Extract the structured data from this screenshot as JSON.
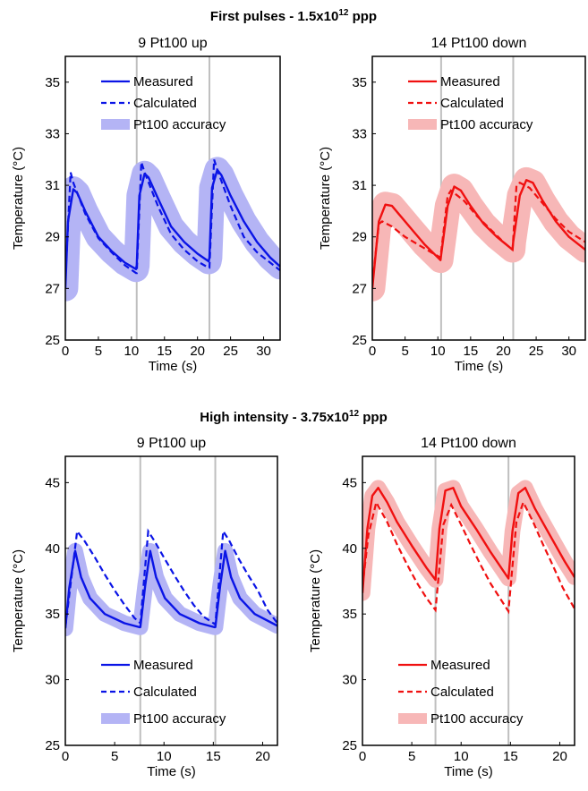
{
  "sections": [
    {
      "title": "First  pulses  -  1.5x10",
      "sup": "12",
      "tail": " ppp"
    },
    {
      "title": "High  intensity  -  3.75x10",
      "sup": "12",
      "tail": " ppp"
    }
  ],
  "colors": {
    "blue": "#0a14e6",
    "blue_band": "#b4b4f5",
    "red": "#f01010",
    "red_band": "#f7b7b7",
    "pulse_line": "#bfbfbf"
  },
  "chart_data": [
    {
      "type": "line",
      "title": "9  Pt100  up",
      "xlabel": "Time  (s)",
      "ylabel": "Temperature  (°C)",
      "xlim": [
        0,
        32.5
      ],
      "ylim": [
        25,
        36
      ],
      "xticks": [
        0,
        5,
        10,
        15,
        20,
        25,
        30
      ],
      "yticks": [
        25,
        27,
        29,
        31,
        33,
        35
      ],
      "pulse_times": [
        10.8,
        21.8
      ],
      "color": "blue",
      "legend": {
        "position": "top-left",
        "entries": [
          {
            "label": "Measured",
            "style": "solid"
          },
          {
            "label": "Calculated",
            "style": "dashed"
          },
          {
            "label": "Pt100  accuracy",
            "style": "band"
          }
        ]
      },
      "series": [
        {
          "name": "Measured",
          "style": "solid",
          "x": [
            0,
            0.4,
            1.2,
            1.8,
            3,
            5,
            7,
            9,
            10.7,
            10.8,
            11.2,
            12,
            12.6,
            14,
            16,
            18,
            20,
            21.7,
            21.8,
            22.2,
            23,
            23.6,
            25,
            27,
            29,
            31,
            32.5
          ],
          "y": [
            27.0,
            29.6,
            30.85,
            30.7,
            30.0,
            29.0,
            28.45,
            28.0,
            27.75,
            27.9,
            30.6,
            31.45,
            31.3,
            30.5,
            29.4,
            28.8,
            28.35,
            28.05,
            28.2,
            30.9,
            31.6,
            31.4,
            30.6,
            29.6,
            28.8,
            28.2,
            27.85
          ]
        },
        {
          "name": "Calculated",
          "style": "dashed",
          "x": [
            0,
            0.8,
            1.2,
            3,
            5,
            7,
            9,
            10.7,
            10.8,
            11.5,
            12,
            14,
            16,
            18,
            20,
            21.7,
            21.8,
            22.5,
            23,
            25,
            27,
            29,
            31,
            32.5
          ],
          "y": [
            27.3,
            31.5,
            31.1,
            29.9,
            28.95,
            28.4,
            27.9,
            27.6,
            27.6,
            31.9,
            31.5,
            30.2,
            29.1,
            28.5,
            28.05,
            27.8,
            27.8,
            32.0,
            31.6,
            30.2,
            29.0,
            28.4,
            28.0,
            27.7
          ]
        }
      ],
      "band_width": 0.5
    },
    {
      "type": "line",
      "title": "14  Pt100  down",
      "xlabel": "Time  (s)",
      "ylabel": "Temperature  (°C)",
      "xlim": [
        0,
        32.5
      ],
      "ylim": [
        25,
        36
      ],
      "xticks": [
        0,
        5,
        10,
        15,
        20,
        25,
        30
      ],
      "yticks": [
        25,
        27,
        29,
        31,
        33,
        35
      ],
      "pulse_times": [
        10.5,
        21.5
      ],
      "color": "red",
      "legend": {
        "position": "top-left",
        "entries": [
          {
            "label": "Measured",
            "style": "solid"
          },
          {
            "label": "Calculated",
            "style": "dashed"
          },
          {
            "label": "Pt100  accuracy",
            "style": "band"
          }
        ]
      },
      "series": [
        {
          "name": "Measured",
          "style": "solid",
          "x": [
            0,
            1,
            2,
            3,
            4,
            6,
            8,
            10.4,
            10.5,
            11.5,
            12.5,
            13.5,
            15,
            17,
            19,
            21.4,
            21.5,
            22.5,
            23.5,
            24.5,
            26,
            28,
            30,
            32.5
          ],
          "y": [
            27.0,
            29.6,
            30.25,
            30.2,
            29.9,
            29.3,
            28.7,
            28.1,
            28.3,
            30.2,
            30.95,
            30.8,
            30.2,
            29.5,
            29.0,
            28.5,
            28.8,
            30.6,
            31.2,
            31.1,
            30.4,
            29.6,
            29.0,
            28.5
          ]
        },
        {
          "name": "Calculated",
          "style": "dashed",
          "x": [
            0,
            1,
            1.5,
            3,
            5,
            7,
            9,
            10.4,
            11.5,
            12,
            14,
            16,
            18,
            20,
            21.4,
            22,
            22.5,
            24,
            26,
            28,
            30,
            32.5
          ],
          "y": [
            27.2,
            29.5,
            29.6,
            29.4,
            29.0,
            28.7,
            28.4,
            28.2,
            30.6,
            30.8,
            30.4,
            29.8,
            29.3,
            28.8,
            28.5,
            31.0,
            31.1,
            30.9,
            30.3,
            29.7,
            29.2,
            28.8
          ]
        }
      ],
      "band_width": 0.5
    },
    {
      "type": "line",
      "title": "9  Pt100  up",
      "xlabel": "Time  (s)",
      "ylabel": "Temperature  (°C)",
      "xlim": [
        0,
        21.5
      ],
      "ylim": [
        25,
        47
      ],
      "xticks": [
        0,
        5,
        10,
        15,
        20
      ],
      "yticks": [
        25,
        30,
        35,
        40,
        45
      ],
      "pulse_times": [
        7.6,
        15.2
      ],
      "color": "blue",
      "legend": {
        "position": "bottom-left",
        "entries": [
          {
            "label": "Measured",
            "style": "solid"
          },
          {
            "label": "Calculated",
            "style": "dashed"
          },
          {
            "label": "Pt100  accuracy",
            "style": "band"
          }
        ]
      },
      "series": [
        {
          "name": "Measured",
          "style": "solid",
          "x": [
            0,
            0.4,
            1,
            1.6,
            2.5,
            4,
            6,
            7.5,
            7.6,
            8.1,
            8.6,
            9.2,
            10.1,
            11.6,
            13.6,
            15.1,
            15.2,
            15.7,
            16.2,
            16.8,
            17.7,
            19.2,
            21.5
          ],
          "y": [
            33.9,
            37.0,
            39.8,
            37.8,
            36.2,
            35.0,
            34.3,
            34.0,
            34.0,
            37.2,
            39.8,
            37.8,
            36.2,
            35.0,
            34.3,
            34.0,
            34.0,
            37.2,
            39.8,
            37.8,
            36.2,
            35.0,
            34.1
          ]
        },
        {
          "name": "Calculated",
          "style": "dashed",
          "x": [
            0,
            1.2,
            2,
            3,
            4,
            5,
            6,
            7,
            7.6,
            8.4,
            9,
            10,
            11,
            12,
            13,
            14,
            15.2,
            16,
            16.6,
            17.5,
            18.5,
            19.5,
            20.5,
            21.5
          ],
          "y": [
            34.0,
            41.3,
            40.5,
            39.3,
            38.0,
            36.8,
            35.7,
            34.7,
            34.3,
            41.3,
            40.6,
            39.3,
            38.0,
            36.8,
            35.7,
            34.8,
            34.2,
            41.3,
            40.6,
            39.3,
            38.0,
            36.8,
            35.3,
            34.3
          ]
        }
      ],
      "band_width": 0.6
    },
    {
      "type": "line",
      "title": "14  Pt100  down",
      "xlabel": "Time  (s)",
      "ylabel": "Temperature  (°C)",
      "xlim": [
        0,
        21.5
      ],
      "ylim": [
        25,
        47
      ],
      "xticks": [
        0,
        5,
        10,
        15,
        20
      ],
      "yticks": [
        25,
        30,
        35,
        40,
        45
      ],
      "pulse_times": [
        7.4,
        14.8
      ],
      "color": "red",
      "legend": {
        "position": "bottom-left",
        "entries": [
          {
            "label": "Measured",
            "style": "solid"
          },
          {
            "label": "Calculated",
            "style": "dashed"
          },
          {
            "label": "Pt100  accuracy",
            "style": "band"
          }
        ]
      },
      "series": [
        {
          "name": "Measured",
          "style": "solid",
          "x": [
            0,
            0.5,
            1,
            1.6,
            2.5,
            3.5,
            5,
            6.5,
            7.4,
            7.8,
            8.4,
            9.2,
            10,
            11.5,
            13,
            14.8,
            15.2,
            15.8,
            16.5,
            17.5,
            19,
            20.5,
            21.5
          ],
          "y": [
            36.6,
            41.5,
            44.0,
            44.6,
            43.5,
            42.0,
            40.2,
            38.5,
            37.6,
            41.5,
            44.4,
            44.6,
            43.2,
            41.5,
            39.7,
            37.7,
            41.3,
            44.2,
            44.6,
            43.0,
            41.0,
            39.0,
            37.8
          ]
        },
        {
          "name": "Calculated",
          "style": "dashed",
          "x": [
            0,
            0.6,
            1.4,
            2.5,
            3.5,
            4.5,
            5.5,
            6.5,
            7.4,
            8.2,
            9,
            10,
            11,
            12,
            13,
            14.8,
            15.6,
            16.3,
            17.3,
            18.3,
            19.3,
            20.3,
            21.5
          ],
          "y": [
            37.0,
            41.0,
            43.5,
            42.0,
            40.3,
            38.8,
            37.4,
            36.2,
            35.3,
            41.8,
            43.3,
            41.8,
            40.2,
            38.7,
            37.3,
            35.2,
            42.0,
            43.5,
            42.0,
            40.3,
            38.7,
            37.0,
            35.4
          ]
        }
      ],
      "band_width": 0.6
    }
  ]
}
